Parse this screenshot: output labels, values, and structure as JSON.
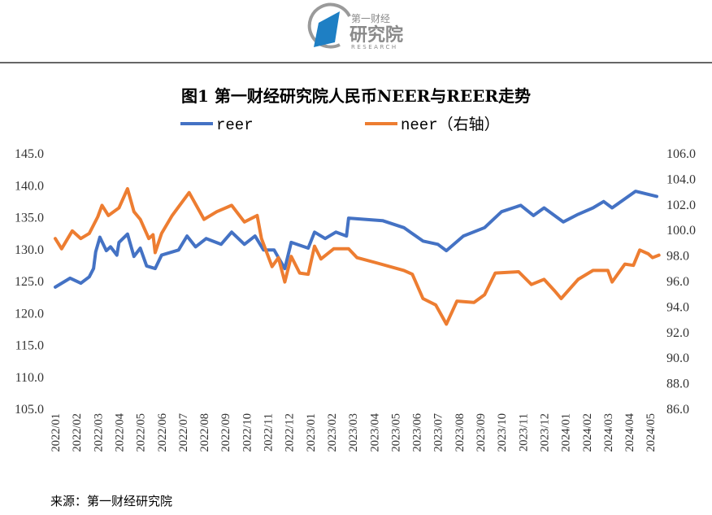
{
  "logo": {
    "line1": "第一财经",
    "line2": "研究院",
    "line3": "RESEARCH"
  },
  "chart_data": {
    "type": "line",
    "title": "图1 第一财经研究院人民币NEER与REER走势",
    "source": "来源：第一财经研究院",
    "x_unit": "months since 2022/01",
    "categories": [
      "2022/01",
      "2022/02",
      "2022/03",
      "2022/04",
      "2022/05",
      "2022/06",
      "2022/07",
      "2022/08",
      "2022/09",
      "2022/10",
      "2022/11",
      "2022/12",
      "2023/01",
      "2023/02",
      "2023/03",
      "2023/04",
      "2023/05",
      "2023/06",
      "2023/07",
      "2023/08",
      "2023/09",
      "2023/10",
      "2023/11",
      "2023/12",
      "2024/01",
      "2024/02",
      "2024/03",
      "2024/04",
      "2024/05"
    ],
    "y_left": {
      "ylim": [
        105,
        145
      ],
      "ticks": [
        "145.0",
        "140.0",
        "135.0",
        "130.0",
        "125.0",
        "120.0",
        "115.0",
        "110.0",
        "105.0"
      ]
    },
    "y_right": {
      "ylim": [
        86,
        106
      ],
      "ticks": [
        "106.0",
        "104.0",
        "102.0",
        "100.0",
        "98.0",
        "96.0",
        "94.0",
        "92.0",
        "90.0",
        "88.0",
        "86.0"
      ]
    },
    "legend": "top",
    "series": [
      {
        "name": "reer",
        "axis": "left",
        "color": "#4472C4",
        "x": [
          0,
          0.7,
          1.2,
          1.6,
          1.8,
          1.9,
          2.1,
          2.4,
          2.6,
          2.9,
          3.0,
          3.4,
          3.7,
          4.0,
          4.3,
          4.7,
          5.0,
          5.8,
          6.2,
          6.6,
          7.1,
          7.8,
          8.3,
          8.9,
          9.4,
          9.8,
          10.3,
          10.5,
          10.8,
          11.1,
          11.9,
          12.2,
          12.7,
          13.2,
          13.7,
          13.8,
          15.4,
          16.4,
          17.3,
          18.0,
          18.4,
          19.2,
          20.2,
          21.0,
          21.9,
          22.5,
          23.0,
          23.9,
          24.6,
          25.3,
          25.8,
          26.2,
          27.3,
          28.3
        ],
        "values": [
          124.0,
          125.4,
          124.6,
          125.6,
          126.9,
          129.5,
          131.8,
          129.7,
          130.3,
          129.0,
          131.0,
          132.3,
          128.8,
          130.1,
          127.3,
          126.9,
          129.0,
          129.8,
          132.0,
          130.3,
          131.6,
          130.7,
          132.6,
          130.7,
          132.0,
          129.8,
          129.8,
          128.6,
          126.9,
          131.0,
          130.1,
          132.6,
          131.6,
          132.6,
          132.0,
          134.8,
          134.4,
          133.3,
          131.2,
          130.7,
          129.7,
          132.0,
          133.3,
          135.8,
          136.8,
          135.2,
          136.4,
          134.2,
          135.4,
          136.4,
          137.4,
          136.4,
          139.0,
          138.2
        ]
      },
      {
        "name": "neer（右轴）",
        "axis": "right",
        "color": "#ED7D31",
        "x": [
          0,
          0.3,
          0.8,
          1.2,
          1.6,
          2.0,
          2.2,
          2.5,
          3.0,
          3.4,
          3.7,
          4.0,
          4.4,
          4.6,
          4.7,
          5.0,
          5.5,
          6.3,
          6.8,
          7.0,
          7.6,
          8.3,
          8.9,
          9.5,
          9.7,
          10.2,
          10.5,
          10.8,
          11.1,
          11.5,
          11.9,
          12.2,
          12.5,
          13.1,
          13.8,
          14.2,
          15.1,
          16.4,
          16.8,
          17.3,
          17.9,
          18.4,
          18.9,
          19.7,
          20.2,
          20.7,
          21.8,
          22.4,
          23.0,
          23.5,
          23.8,
          24.6,
          25.3,
          26.0,
          26.2,
          26.8,
          27.2,
          27.5,
          27.9,
          28.1,
          28.4
        ],
        "values": [
          99.3,
          98.5,
          99.9,
          99.3,
          99.7,
          101.0,
          101.9,
          101.1,
          101.7,
          103.2,
          101.4,
          100.8,
          99.3,
          99.6,
          98.2,
          99.7,
          101.1,
          102.9,
          101.4,
          100.8,
          101.4,
          101.9,
          100.6,
          101.1,
          99.3,
          97.1,
          97.8,
          95.9,
          97.9,
          96.6,
          96.5,
          98.7,
          97.7,
          98.5,
          98.5,
          97.8,
          97.4,
          96.8,
          96.5,
          94.6,
          94.1,
          92.6,
          94.4,
          94.3,
          94.9,
          96.6,
          96.7,
          95.7,
          96.1,
          95.2,
          94.6,
          96.1,
          96.8,
          96.8,
          95.9,
          97.3,
          97.2,
          98.4,
          98.1,
          97.8,
          98.0
        ]
      }
    ]
  }
}
